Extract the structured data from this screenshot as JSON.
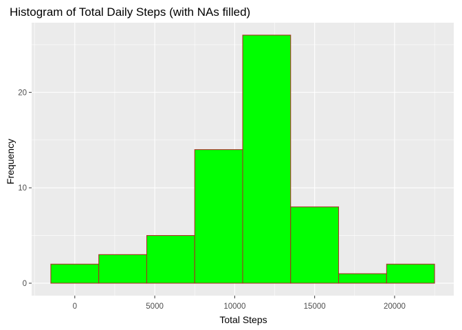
{
  "chart_data": {
    "type": "bar",
    "title": "Histogram of Total Daily Steps (with NAs filled)",
    "xlabel": "Total Steps",
    "ylabel": "Frequency",
    "bin_width": 3000,
    "bins": [
      {
        "x_start": -1500,
        "x_end": 1500,
        "count": 2
      },
      {
        "x_start": 1500,
        "x_end": 4500,
        "count": 3
      },
      {
        "x_start": 4500,
        "x_end": 7500,
        "count": 5
      },
      {
        "x_start": 7500,
        "x_end": 10500,
        "count": 14
      },
      {
        "x_start": 10500,
        "x_end": 13500,
        "count": 26
      },
      {
        "x_start": 13500,
        "x_end": 16500,
        "count": 8
      },
      {
        "x_start": 16500,
        "x_end": 19500,
        "count": 1
      },
      {
        "x_start": 19500,
        "x_end": 22500,
        "count": 2
      }
    ],
    "xlim": [
      -2700,
      23700
    ],
    "ylim": [
      -1.3,
      27.3
    ],
    "x_ticks": [
      0,
      5000,
      10000,
      15000,
      20000
    ],
    "x_tick_labels": [
      "0",
      "5000",
      "10000",
      "15000",
      "20000"
    ],
    "y_ticks": [
      0,
      10,
      20
    ],
    "y_tick_labels": [
      "0",
      "10",
      "20"
    ],
    "grid": true,
    "colors": {
      "bar_fill": "#00ff00",
      "bar_outline": "#b22222",
      "panel_background": "#ebebeb",
      "grid_major": "#ffffff",
      "tick_text": "#4d4d4d",
      "tick_mark": "#333333"
    }
  }
}
